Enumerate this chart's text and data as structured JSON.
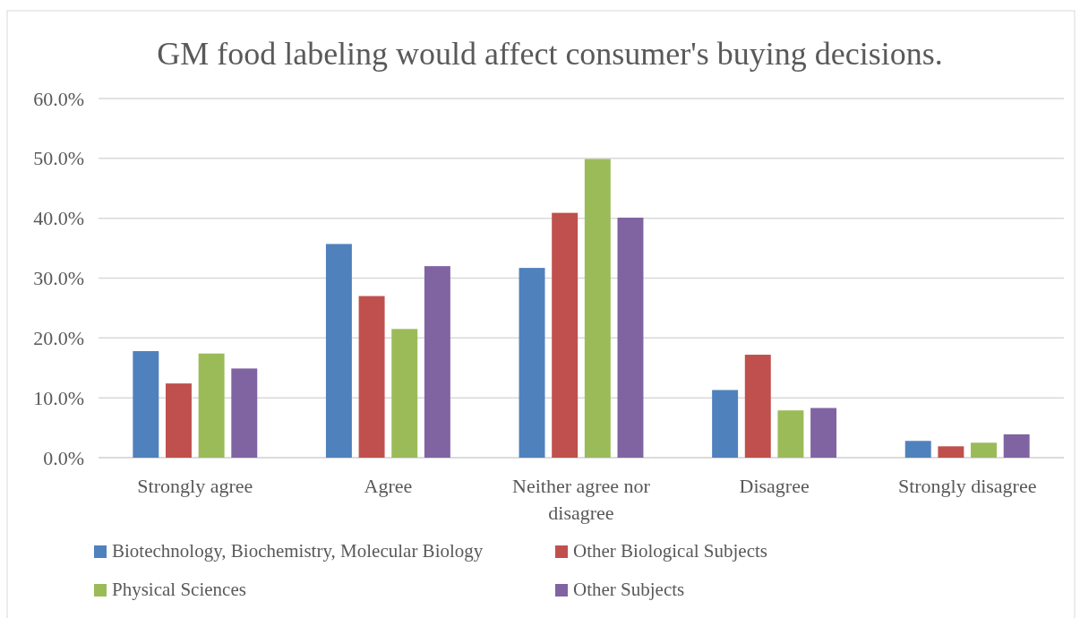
{
  "chart_data": {
    "type": "bar",
    "title": "GM food labeling would affect consumer's buying decisions.",
    "categories": [
      "Strongly agree",
      "Agree",
      "Neither agree nor disagree",
      "Disagree",
      "Strongly disagree"
    ],
    "series": [
      {
        "name": "Biotechnology, Biochemistry, Molecular Biology",
        "color": "#4f81bd",
        "values": [
          17.8,
          35.7,
          31.7,
          11.3,
          2.8
        ]
      },
      {
        "name": "Other Biological Subjects",
        "color": "#c0504d",
        "values": [
          12.4,
          27.0,
          40.9,
          17.2,
          1.9
        ]
      },
      {
        "name": "Physical Sciences",
        "color": "#9bbb59",
        "values": [
          17.4,
          21.5,
          49.9,
          7.9,
          2.5
        ]
      },
      {
        "name": "Other Subjects",
        "color": "#8064a2",
        "values": [
          14.9,
          32.0,
          40.1,
          8.3,
          3.9
        ]
      }
    ],
    "ylim": [
      0,
      60
    ],
    "yticks": [
      {
        "value": 0,
        "label": "0.0%"
      },
      {
        "value": 10,
        "label": "10.0%"
      },
      {
        "value": 20,
        "label": "20.0%"
      },
      {
        "value": 30,
        "label": "30.0%"
      },
      {
        "value": 40,
        "label": "40.0%"
      },
      {
        "value": 50,
        "label": "50.0%"
      },
      {
        "value": 60,
        "label": "60.0%"
      }
    ],
    "grid": "y",
    "legend": "bottom"
  }
}
